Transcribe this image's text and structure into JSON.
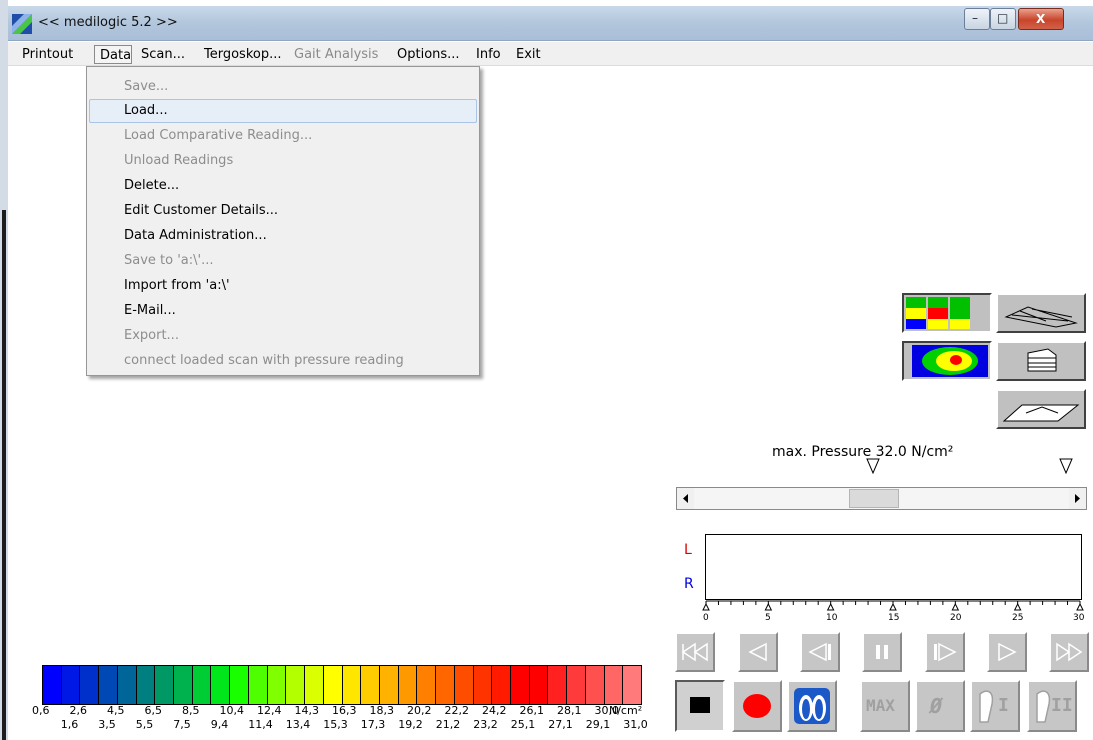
{
  "window": {
    "title": "<< medilogic 5.2 >>",
    "minimize_glyph": "–",
    "maximize_glyph": "□",
    "close_glyph": "X"
  },
  "menubar": {
    "items": [
      {
        "label": "Printout",
        "enabled": true
      },
      {
        "label": "Data",
        "enabled": true,
        "open": true
      },
      {
        "label": "Scan...",
        "enabled": true
      },
      {
        "label": "Tergoskop...",
        "enabled": true
      },
      {
        "label": "Gait Analysis",
        "enabled": false
      },
      {
        "label": "Options...",
        "enabled": true
      },
      {
        "label": "Info",
        "enabled": true
      },
      {
        "label": "Exit",
        "enabled": true
      }
    ]
  },
  "data_menu": {
    "items": [
      {
        "label": "Save...",
        "enabled": false
      },
      {
        "label": "Load...",
        "enabled": true,
        "highlighted": true
      },
      {
        "label": "Load Comparative Reading...",
        "enabled": false
      },
      {
        "label": "Unload Readings",
        "enabled": false
      },
      {
        "label": "Delete...",
        "enabled": true
      },
      {
        "label": "Edit Customer Details...",
        "enabled": true
      },
      {
        "label": "Data Administration...",
        "enabled": true
      },
      {
        "label": "Save to 'a:\\'...",
        "enabled": false
      },
      {
        "label": "Import from 'a:\\'",
        "enabled": true
      },
      {
        "label": "E-Mail...",
        "enabled": true
      },
      {
        "label": "Export...",
        "enabled": false
      },
      {
        "label": "connect loaded scan with pressure reading",
        "enabled": false
      }
    ]
  },
  "view_buttons": [
    {
      "icon": "grid-view-icon",
      "selected": true
    },
    {
      "icon": "wireframe-3d-icon",
      "selected": false
    },
    {
      "icon": "isobar-map-icon",
      "selected": true
    },
    {
      "icon": "contour-layers-icon",
      "selected": false
    },
    {
      "icon": "surface-3d-icon",
      "selected": false
    }
  ],
  "pressure": {
    "label": "max. Pressure 32.0 N/cm²"
  },
  "timeline": {
    "left_label": "L",
    "right_label": "R",
    "ticks": [
      "0",
      "5",
      "10",
      "15",
      "20",
      "25",
      "30"
    ],
    "left_color": "#e00000",
    "right_color": "#0000e0"
  },
  "playback": [
    {
      "icon": "rewind-icon"
    },
    {
      "icon": "step-back-icon"
    },
    {
      "icon": "frame-back-icon"
    },
    {
      "icon": "pause-icon"
    },
    {
      "icon": "frame-forward-icon"
    },
    {
      "icon": "step-forward-icon"
    },
    {
      "icon": "fast-forward-icon"
    }
  ],
  "bottom_buttons": {
    "stop": "stop-icon",
    "record": "record-icon",
    "feet": "feet-icon",
    "max_label": "MAX",
    "average_glyph": "Ø",
    "foot_one_label": "I",
    "foot_two_label": "II"
  },
  "scale": {
    "unit": "N/cm²",
    "top_labels": [
      "0,6",
      "2,6",
      "4,5",
      "6,5",
      "8,5",
      "10,4",
      "12,4",
      "14,3",
      "16,3",
      "18,3",
      "20,2",
      "22,2",
      "24,2",
      "26,1",
      "28,1",
      "30,0"
    ],
    "bottom_labels": [
      "1,6",
      "3,5",
      "5,5",
      "7,5",
      "9,4",
      "11,4",
      "13,4",
      "15,3",
      "17,3",
      "19,2",
      "21,2",
      "23,2",
      "25,1",
      "27,1",
      "29,1",
      "31,0"
    ],
    "colors": [
      "#0000ff",
      "#0018e6",
      "#0030cc",
      "#0048b3",
      "#006699",
      "#007f80",
      "#009966",
      "#00b24d",
      "#00cc33",
      "#00e61a",
      "#1aff00",
      "#4dff00",
      "#80ff00",
      "#b3ff00",
      "#d9ff00",
      "#ffff00",
      "#ffe600",
      "#ffcc00",
      "#ffb300",
      "#ff9900",
      "#ff8000",
      "#ff6600",
      "#ff4d00",
      "#ff3300",
      "#ff1a00",
      "#ff0000",
      "#ff0000",
      "#ff2020",
      "#ff3a3a",
      "#ff5050",
      "#ff6666",
      "#ff7a7a"
    ]
  }
}
